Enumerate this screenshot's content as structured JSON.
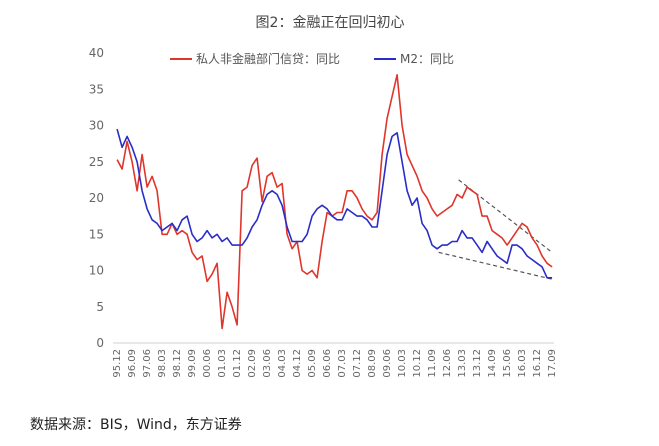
{
  "chart_data": {
    "type": "line",
    "title": "图2：金融正在回归初心",
    "xlabel": "",
    "ylabel": "",
    "ylim": [
      0,
      40
    ],
    "yticks": [
      0,
      5,
      10,
      15,
      20,
      25,
      30,
      35,
      40
    ],
    "grid": false,
    "legend_position": "top",
    "x_tick_labels": [
      "95.12",
      "96.09",
      "97.06",
      "98.03",
      "98.12",
      "99.09",
      "00.06",
      "01.03",
      "01.12",
      "02.09",
      "03.06",
      "04.03",
      "04.12",
      "05.09",
      "06.06",
      "07.03",
      "07.12",
      "08.09",
      "09.06",
      "10.03",
      "10.12",
      "11.09",
      "12.06",
      "13.03",
      "13.12",
      "14.09",
      "15.06",
      "16.03",
      "16.12",
      "17.09"
    ],
    "x_start": 1995.917,
    "x_end": 2017.667,
    "series": [
      {
        "name": "私人非金融部门信贷：同比",
        "color": "#e0352b",
        "points": [
          [
            1995.92,
            25.3
          ],
          [
            1996.17,
            24.0
          ],
          [
            1996.42,
            27.8
          ],
          [
            1996.67,
            25.0
          ],
          [
            1996.92,
            21.0
          ],
          [
            1997.17,
            26.0
          ],
          [
            1997.42,
            21.5
          ],
          [
            1997.67,
            23.0
          ],
          [
            1997.92,
            21.0
          ],
          [
            1998.17,
            15.0
          ],
          [
            1998.42,
            15.0
          ],
          [
            1998.67,
            16.5
          ],
          [
            1998.92,
            15.0
          ],
          [
            1999.17,
            15.5
          ],
          [
            1999.42,
            15.0
          ],
          [
            1999.67,
            12.5
          ],
          [
            1999.92,
            11.5
          ],
          [
            2000.17,
            12.0
          ],
          [
            2000.42,
            8.5
          ],
          [
            2000.67,
            9.5
          ],
          [
            2000.92,
            11.0
          ],
          [
            2001.17,
            2.0
          ],
          [
            2001.42,
            7.0
          ],
          [
            2001.67,
            5.0
          ],
          [
            2001.92,
            2.5
          ],
          [
            2002.17,
            21.0
          ],
          [
            2002.42,
            21.5
          ],
          [
            2002.67,
            24.5
          ],
          [
            2002.92,
            25.5
          ],
          [
            2003.17,
            19.5
          ],
          [
            2003.42,
            23.0
          ],
          [
            2003.67,
            23.5
          ],
          [
            2003.92,
            21.5
          ],
          [
            2004.17,
            22.0
          ],
          [
            2004.42,
            15.0
          ],
          [
            2004.67,
            13.0
          ],
          [
            2004.92,
            14.0
          ],
          [
            2005.17,
            10.0
          ],
          [
            2005.42,
            9.5
          ],
          [
            2005.67,
            10.0
          ],
          [
            2005.92,
            9.0
          ],
          [
            2006.17,
            14.0
          ],
          [
            2006.42,
            18.0
          ],
          [
            2006.67,
            17.5
          ],
          [
            2006.92,
            18.0
          ],
          [
            2007.17,
            18.0
          ],
          [
            2007.42,
            21.0
          ],
          [
            2007.67,
            21.0
          ],
          [
            2007.92,
            20.0
          ],
          [
            2008.17,
            18.5
          ],
          [
            2008.42,
            17.5
          ],
          [
            2008.67,
            17.0
          ],
          [
            2008.92,
            18.0
          ],
          [
            2009.17,
            26.0
          ],
          [
            2009.42,
            31.0
          ],
          [
            2009.67,
            34.0
          ],
          [
            2009.92,
            37.0
          ],
          [
            2010.17,
            30.0
          ],
          [
            2010.42,
            26.0
          ],
          [
            2010.67,
            24.5
          ],
          [
            2010.92,
            23.0
          ],
          [
            2011.17,
            21.0
          ],
          [
            2011.42,
            20.0
          ],
          [
            2011.67,
            18.5
          ],
          [
            2011.92,
            17.5
          ],
          [
            2012.17,
            18.0
          ],
          [
            2012.42,
            18.5
          ],
          [
            2012.67,
            19.0
          ],
          [
            2012.92,
            20.5
          ],
          [
            2013.17,
            20.0
          ],
          [
            2013.42,
            21.5
          ],
          [
            2013.67,
            21.0
          ],
          [
            2013.92,
            20.5
          ],
          [
            2014.17,
            17.5
          ],
          [
            2014.42,
            17.5
          ],
          [
            2014.67,
            15.5
          ],
          [
            2014.92,
            15.0
          ],
          [
            2015.17,
            14.5
          ],
          [
            2015.42,
            13.5
          ],
          [
            2015.67,
            14.5
          ],
          [
            2015.92,
            15.5
          ],
          [
            2016.17,
            16.5
          ],
          [
            2016.42,
            16.0
          ],
          [
            2016.67,
            14.5
          ],
          [
            2016.92,
            13.5
          ],
          [
            2017.17,
            12.0
          ],
          [
            2017.42,
            11.0
          ],
          [
            2017.67,
            10.5
          ]
        ]
      },
      {
        "name": "M2：同比",
        "color": "#2a2dc8",
        "points": [
          [
            1995.92,
            29.5
          ],
          [
            1996.17,
            27.0
          ],
          [
            1996.42,
            28.5
          ],
          [
            1996.67,
            27.0
          ],
          [
            1996.92,
            25.0
          ],
          [
            1997.17,
            21.0
          ],
          [
            1997.42,
            18.5
          ],
          [
            1997.67,
            17.0
          ],
          [
            1997.92,
            16.5
          ],
          [
            1998.17,
            15.5
          ],
          [
            1998.42,
            16.0
          ],
          [
            1998.67,
            16.5
          ],
          [
            1998.92,
            15.5
          ],
          [
            1999.17,
            17.0
          ],
          [
            1999.42,
            17.5
          ],
          [
            1999.67,
            15.0
          ],
          [
            1999.92,
            14.0
          ],
          [
            2000.17,
            14.5
          ],
          [
            2000.42,
            15.5
          ],
          [
            2000.67,
            14.5
          ],
          [
            2000.92,
            15.0
          ],
          [
            2001.17,
            14.0
          ],
          [
            2001.42,
            14.5
          ],
          [
            2001.67,
            13.5
          ],
          [
            2001.92,
            13.5
          ],
          [
            2002.17,
            13.5
          ],
          [
            2002.42,
            14.5
          ],
          [
            2002.67,
            16.0
          ],
          [
            2002.92,
            17.0
          ],
          [
            2003.17,
            19.0
          ],
          [
            2003.42,
            20.5
          ],
          [
            2003.67,
            21.0
          ],
          [
            2003.92,
            20.5
          ],
          [
            2004.17,
            19.0
          ],
          [
            2004.42,
            16.0
          ],
          [
            2004.67,
            14.0
          ],
          [
            2004.92,
            14.0
          ],
          [
            2005.17,
            14.0
          ],
          [
            2005.42,
            15.0
          ],
          [
            2005.67,
            17.5
          ],
          [
            2005.92,
            18.5
          ],
          [
            2006.17,
            19.0
          ],
          [
            2006.42,
            18.5
          ],
          [
            2006.67,
            17.5
          ],
          [
            2006.92,
            17.0
          ],
          [
            2007.17,
            17.0
          ],
          [
            2007.42,
            18.5
          ],
          [
            2007.67,
            18.0
          ],
          [
            2007.92,
            17.5
          ],
          [
            2008.17,
            17.5
          ],
          [
            2008.42,
            17.0
          ],
          [
            2008.67,
            16.0
          ],
          [
            2008.92,
            16.0
          ],
          [
            2009.17,
            21.0
          ],
          [
            2009.42,
            26.0
          ],
          [
            2009.67,
            28.5
          ],
          [
            2009.92,
            29.0
          ],
          [
            2010.17,
            25.0
          ],
          [
            2010.42,
            21.0
          ],
          [
            2010.67,
            19.0
          ],
          [
            2010.92,
            20.0
          ],
          [
            2011.17,
            16.5
          ],
          [
            2011.42,
            15.5
          ],
          [
            2011.67,
            13.5
          ],
          [
            2011.92,
            13.0
          ],
          [
            2012.17,
            13.5
          ],
          [
            2012.42,
            13.5
          ],
          [
            2012.67,
            14.0
          ],
          [
            2012.92,
            14.0
          ],
          [
            2013.17,
            15.5
          ],
          [
            2013.42,
            14.5
          ],
          [
            2013.67,
            14.5
          ],
          [
            2013.92,
            13.5
          ],
          [
            2014.17,
            12.5
          ],
          [
            2014.42,
            14.0
          ],
          [
            2014.67,
            13.0
          ],
          [
            2014.92,
            12.0
          ],
          [
            2015.17,
            11.5
          ],
          [
            2015.42,
            11.0
          ],
          [
            2015.67,
            13.5
          ],
          [
            2015.92,
            13.5
          ],
          [
            2016.17,
            13.0
          ],
          [
            2016.42,
            12.0
          ],
          [
            2016.67,
            11.5
          ],
          [
            2016.92,
            11.0
          ],
          [
            2017.17,
            10.5
          ],
          [
            2017.42,
            9.0
          ],
          [
            2017.67,
            9.0
          ]
        ]
      }
    ],
    "trend_lines": [
      {
        "color": "#555555",
        "points": [
          [
            2013.0,
            22.5
          ],
          [
            2017.67,
            12.5
          ]
        ]
      },
      {
        "color": "#555555",
        "points": [
          [
            2012.0,
            12.5
          ],
          [
            2017.67,
            8.8
          ]
        ]
      }
    ]
  },
  "source_note": "数据来源：BIS，Wind，东方证券"
}
